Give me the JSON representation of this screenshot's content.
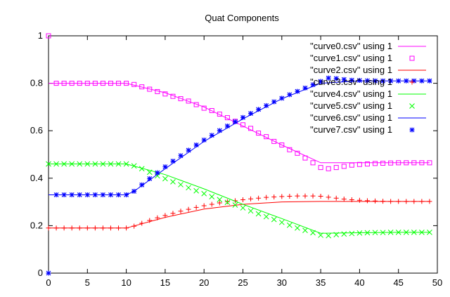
{
  "chart_data": {
    "type": "line",
    "title": "Quat Components",
    "xlabel": "",
    "ylabel": "",
    "xlim": [
      0,
      50
    ],
    "ylim": [
      0,
      1
    ],
    "xticks": [
      0,
      5,
      10,
      15,
      20,
      25,
      30,
      35,
      40,
      45,
      50
    ],
    "yticks": [
      0,
      0.2,
      0.4,
      0.6,
      0.8,
      1
    ],
    "ytick_labels": [
      "0",
      "0.2",
      "0.4",
      "0.6",
      "0.8",
      "1"
    ],
    "grid": false,
    "legend_position": "top-right",
    "series": [
      {
        "name": "\"curve0.csv\" using 1",
        "style": "line",
        "color": "#ff00ff",
        "points": [
          [
            0,
            0.8
          ],
          [
            10,
            0.8
          ],
          [
            15,
            0.76
          ],
          [
            20,
            0.7
          ],
          [
            25,
            0.62
          ],
          [
            30,
            0.54
          ],
          [
            35,
            0.465
          ],
          [
            40,
            0.465
          ],
          [
            45,
            0.465
          ],
          [
            49,
            0.465
          ]
        ]
      },
      {
        "name": "\"curve1.csv\" using 1",
        "style": "squares",
        "color": "#ff00ff",
        "points": [
          [
            0,
            1.0
          ],
          [
            1,
            0.8
          ],
          [
            2,
            0.8
          ],
          [
            3,
            0.8
          ],
          [
            4,
            0.8
          ],
          [
            5,
            0.8
          ],
          [
            6,
            0.8
          ],
          [
            7,
            0.8
          ],
          [
            8,
            0.8
          ],
          [
            9,
            0.8
          ],
          [
            10,
            0.8
          ],
          [
            11,
            0.795
          ],
          [
            12,
            0.785
          ],
          [
            13,
            0.775
          ],
          [
            14,
            0.765
          ],
          [
            15,
            0.755
          ],
          [
            16,
            0.745
          ],
          [
            17,
            0.735
          ],
          [
            18,
            0.725
          ],
          [
            19,
            0.71
          ],
          [
            20,
            0.695
          ],
          [
            21,
            0.685
          ],
          [
            22,
            0.67
          ],
          [
            23,
            0.655
          ],
          [
            24,
            0.64
          ],
          [
            25,
            0.625
          ],
          [
            26,
            0.61
          ],
          [
            27,
            0.59
          ],
          [
            28,
            0.575
          ],
          [
            29,
            0.555
          ],
          [
            30,
            0.54
          ],
          [
            31,
            0.52
          ],
          [
            32,
            0.505
          ],
          [
            33,
            0.485
          ],
          [
            34,
            0.465
          ],
          [
            35,
            0.445
          ],
          [
            36,
            0.44
          ],
          [
            37,
            0.445
          ],
          [
            38,
            0.45
          ],
          [
            39,
            0.455
          ],
          [
            40,
            0.458
          ],
          [
            41,
            0.46
          ],
          [
            42,
            0.462
          ],
          [
            43,
            0.463
          ],
          [
            44,
            0.464
          ],
          [
            45,
            0.465
          ],
          [
            46,
            0.465
          ],
          [
            47,
            0.465
          ],
          [
            48,
            0.465
          ],
          [
            49,
            0.465
          ]
        ]
      },
      {
        "name": "\"curve2.csv\" using 1",
        "style": "line",
        "color": "#ff0000",
        "points": [
          [
            0,
            0.19
          ],
          [
            10,
            0.19
          ],
          [
            15,
            0.235
          ],
          [
            20,
            0.27
          ],
          [
            25,
            0.29
          ],
          [
            30,
            0.3
          ],
          [
            35,
            0.302
          ],
          [
            40,
            0.302
          ],
          [
            45,
            0.302
          ],
          [
            49,
            0.302
          ]
        ]
      },
      {
        "name": "\"curve3.csv\" using 1",
        "style": "plus",
        "color": "#ff0000",
        "points": [
          [
            0,
            0.19
          ],
          [
            1,
            0.19
          ],
          [
            2,
            0.19
          ],
          [
            3,
            0.19
          ],
          [
            4,
            0.19
          ],
          [
            5,
            0.19
          ],
          [
            6,
            0.19
          ],
          [
            7,
            0.19
          ],
          [
            8,
            0.19
          ],
          [
            9,
            0.19
          ],
          [
            10,
            0.19
          ],
          [
            11,
            0.198
          ],
          [
            12,
            0.21
          ],
          [
            13,
            0.222
          ],
          [
            14,
            0.233
          ],
          [
            15,
            0.243
          ],
          [
            16,
            0.252
          ],
          [
            17,
            0.261
          ],
          [
            18,
            0.269
          ],
          [
            19,
            0.277
          ],
          [
            20,
            0.284
          ],
          [
            21,
            0.29
          ],
          [
            22,
            0.296
          ],
          [
            23,
            0.301
          ],
          [
            24,
            0.305
          ],
          [
            25,
            0.309
          ],
          [
            26,
            0.313
          ],
          [
            27,
            0.316
          ],
          [
            28,
            0.319
          ],
          [
            29,
            0.321
          ],
          [
            30,
            0.323
          ],
          [
            31,
            0.324
          ],
          [
            32,
            0.325
          ],
          [
            33,
            0.325
          ],
          [
            34,
            0.325
          ],
          [
            35,
            0.324
          ],
          [
            36,
            0.32
          ],
          [
            37,
            0.316
          ],
          [
            38,
            0.312
          ],
          [
            39,
            0.309
          ],
          [
            40,
            0.307
          ],
          [
            41,
            0.305
          ],
          [
            42,
            0.304
          ],
          [
            43,
            0.303
          ],
          [
            44,
            0.302
          ],
          [
            45,
            0.302
          ],
          [
            46,
            0.302
          ],
          [
            47,
            0.302
          ],
          [
            48,
            0.302
          ],
          [
            49,
            0.302
          ]
        ]
      },
      {
        "name": "\"curve4.csv\" using 1",
        "style": "line",
        "color": "#00ff00",
        "points": [
          [
            0,
            0.46
          ],
          [
            10,
            0.46
          ],
          [
            15,
            0.415
          ],
          [
            20,
            0.355
          ],
          [
            25,
            0.29
          ],
          [
            30,
            0.23
          ],
          [
            35,
            0.168
          ],
          [
            40,
            0.17
          ],
          [
            45,
            0.172
          ],
          [
            49,
            0.172
          ]
        ]
      },
      {
        "name": "\"curve5.csv\" using 1",
        "style": "cross",
        "color": "#00ff00",
        "points": [
          [
            0,
            0.46
          ],
          [
            1,
            0.46
          ],
          [
            2,
            0.46
          ],
          [
            3,
            0.46
          ],
          [
            4,
            0.46
          ],
          [
            5,
            0.46
          ],
          [
            6,
            0.46
          ],
          [
            7,
            0.46
          ],
          [
            8,
            0.46
          ],
          [
            9,
            0.46
          ],
          [
            10,
            0.46
          ],
          [
            11,
            0.452
          ],
          [
            12,
            0.44
          ],
          [
            13,
            0.425
          ],
          [
            14,
            0.41
          ],
          [
            15,
            0.398
          ],
          [
            16,
            0.385
          ],
          [
            17,
            0.373
          ],
          [
            18,
            0.36
          ],
          [
            19,
            0.347
          ],
          [
            20,
            0.335
          ],
          [
            21,
            0.322
          ],
          [
            22,
            0.31
          ],
          [
            23,
            0.298
          ],
          [
            24,
            0.287
          ],
          [
            25,
            0.275
          ],
          [
            26,
            0.262
          ],
          [
            27,
            0.25
          ],
          [
            28,
            0.238
          ],
          [
            29,
            0.226
          ],
          [
            30,
            0.214
          ],
          [
            31,
            0.202
          ],
          [
            32,
            0.19
          ],
          [
            33,
            0.18
          ],
          [
            34,
            0.17
          ],
          [
            35,
            0.16
          ],
          [
            36,
            0.158
          ],
          [
            37,
            0.162
          ],
          [
            38,
            0.165
          ],
          [
            39,
            0.167
          ],
          [
            40,
            0.169
          ],
          [
            41,
            0.17
          ],
          [
            42,
            0.171
          ],
          [
            43,
            0.171
          ],
          [
            44,
            0.172
          ],
          [
            45,
            0.172
          ],
          [
            46,
            0.172
          ],
          [
            47,
            0.172
          ],
          [
            48,
            0.172
          ],
          [
            49,
            0.172
          ]
        ]
      },
      {
        "name": "\"curve6.csv\" using 1",
        "style": "line",
        "color": "#0000ff",
        "points": [
          [
            0,
            0.33
          ],
          [
            10,
            0.33
          ],
          [
            11,
            0.345
          ],
          [
            15,
            0.44
          ],
          [
            20,
            0.555
          ],
          [
            25,
            0.65
          ],
          [
            30,
            0.735
          ],
          [
            35,
            0.8
          ],
          [
            40,
            0.81
          ],
          [
            45,
            0.81
          ],
          [
            49,
            0.81
          ]
        ]
      },
      {
        "name": "\"curve7.csv\" using 1",
        "style": "star",
        "color": "#0000ff",
        "points": [
          [
            0,
            0.0
          ],
          [
            1,
            0.33
          ],
          [
            2,
            0.33
          ],
          [
            3,
            0.33
          ],
          [
            4,
            0.33
          ],
          [
            5,
            0.33
          ],
          [
            6,
            0.33
          ],
          [
            7,
            0.33
          ],
          [
            8,
            0.33
          ],
          [
            9,
            0.33
          ],
          [
            10,
            0.33
          ],
          [
            11,
            0.345
          ],
          [
            12,
            0.372
          ],
          [
            13,
            0.398
          ],
          [
            14,
            0.423
          ],
          [
            15,
            0.448
          ],
          [
            16,
            0.472
          ],
          [
            17,
            0.495
          ],
          [
            18,
            0.518
          ],
          [
            19,
            0.54
          ],
          [
            20,
            0.561
          ],
          [
            21,
            0.581
          ],
          [
            22,
            0.601
          ],
          [
            23,
            0.62
          ],
          [
            24,
            0.638
          ],
          [
            25,
            0.656
          ],
          [
            26,
            0.673
          ],
          [
            27,
            0.69
          ],
          [
            28,
            0.706
          ],
          [
            29,
            0.722
          ],
          [
            30,
            0.737
          ],
          [
            31,
            0.752
          ],
          [
            32,
            0.766
          ],
          [
            33,
            0.78
          ],
          [
            34,
            0.794
          ],
          [
            35,
            0.808
          ],
          [
            36,
            0.822
          ],
          [
            37,
            0.82
          ],
          [
            38,
            0.816
          ],
          [
            39,
            0.813
          ],
          [
            40,
            0.812
          ],
          [
            41,
            0.811
          ],
          [
            42,
            0.81
          ],
          [
            43,
            0.81
          ],
          [
            44,
            0.81
          ],
          [
            45,
            0.81
          ],
          [
            46,
            0.81
          ],
          [
            47,
            0.81
          ],
          [
            48,
            0.81
          ],
          [
            49,
            0.81
          ]
        ]
      }
    ]
  }
}
